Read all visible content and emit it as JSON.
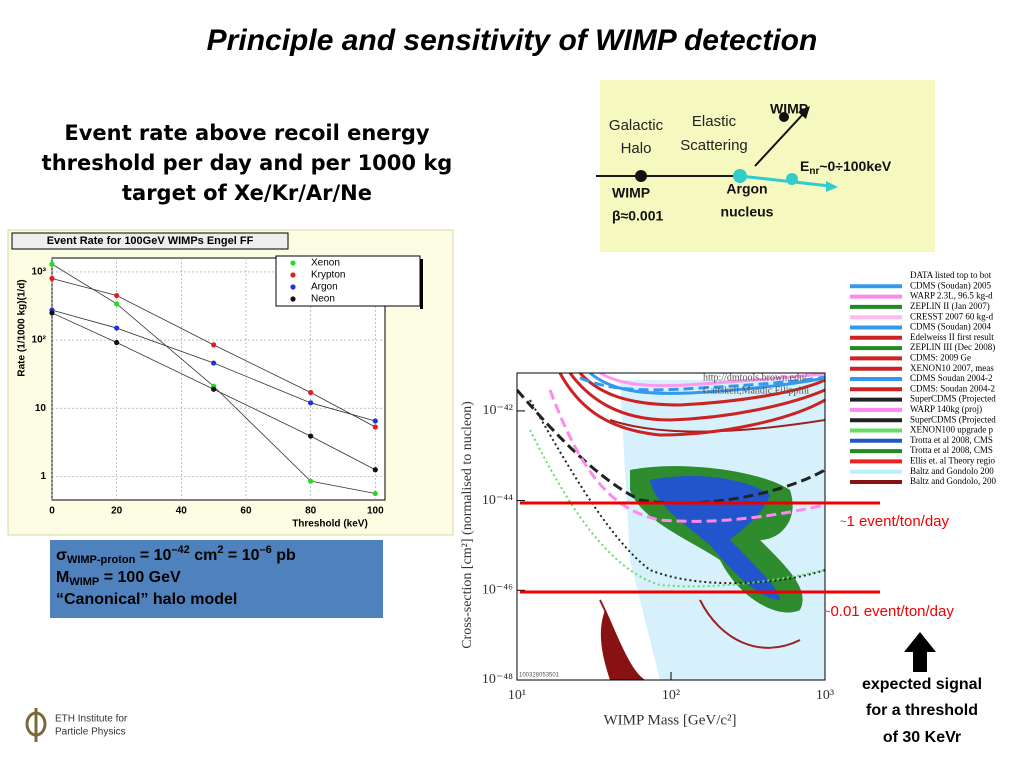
{
  "title": "Principle and sensitivity of WIMP detection",
  "rate_text": [
    "Event rate above recoil energy",
    "threshold per day and per 1000 kg",
    "target of Xe/Kr/Ar/Ne"
  ],
  "diagram": {
    "halo": [
      "Galactic",
      "Halo"
    ],
    "scattering": [
      "Elastic",
      "Scattering"
    ],
    "wimp_out": "WIMP",
    "recoil": [
      "E",
      "nr",
      "~0÷100keV"
    ],
    "nucleus": [
      "Argon",
      "nucleus"
    ],
    "wimp_in": [
      "WIMP",
      "β≈0.001"
    ]
  },
  "chart_data": [
    {
      "type": "line",
      "title": "Event Rate for 100GeV WIMPs Engel FF",
      "xlabel": "Threshold (keV)",
      "ylabel": "Rate (1/1000 kg)(1/d)",
      "x": [
        0,
        20,
        50,
        80,
        100
      ],
      "series": [
        {
          "name": "Xenon",
          "color": "#22dd22",
          "values": [
            1300,
            340,
            21,
            0.85,
            0.56
          ]
        },
        {
          "name": "Krypton",
          "color": "#e02020",
          "values": [
            800,
            450,
            85,
            17,
            5.3
          ]
        },
        {
          "name": "Argon",
          "color": "#2030e0",
          "values": [
            275,
            150,
            46,
            12,
            6.5
          ]
        },
        {
          "name": "Neon",
          "color": "#111111",
          "values": [
            250,
            92,
            19,
            3.9,
            1.25
          ]
        }
      ],
      "xlim": [
        0,
        103
      ],
      "xticks": [
        0,
        20,
        40,
        60,
        80,
        100
      ],
      "ylim": [
        0.45,
        1600
      ],
      "ylog": true,
      "yticks": [
        1,
        10,
        {
          "value": 100,
          "label": "10²"
        },
        {
          "value": 1000,
          "label": "10³"
        }
      ],
      "grid": true,
      "legend": "top-right"
    },
    {
      "type": "exclusion",
      "xlabel": "WIMP Mass [GeV/c²]",
      "ylabel": "Cross-section [cm²] (normalised to nucleon)",
      "credit": [
        "http://dmtools.brown.edu/",
        "Gaitskell,Mandic,Filippini"
      ],
      "stamp": "100328053501",
      "xlim": [
        10,
        1000
      ],
      "xlog": true,
      "xticks": [
        {
          "value": 10,
          "label": "10¹"
        },
        {
          "value": 100,
          "label": "10²"
        },
        {
          "value": 1000,
          "label": "10³"
        }
      ],
      "ylim": [
        1e-48,
        7e-42
      ],
      "ylog": true,
      "yticks": [
        {
          "value": 1e-42,
          "label": "10⁻⁴²"
        },
        {
          "value": 1e-44,
          "label": "10⁻⁴⁴"
        },
        {
          "value": 1e-46,
          "label": "10⁻⁴⁶"
        },
        {
          "value": 1e-48,
          "label": "10⁻⁴⁸"
        }
      ],
      "legend_entries": [
        {
          "name": "DATA listed top to bot",
          "color": "#ffffff"
        },
        {
          "name": "CDMS (Soudan) 2005",
          "color": "#3399ee"
        },
        {
          "name": "WARP 2.3L, 96.5 kg-d",
          "color": "#ff88ee"
        },
        {
          "name": "ZEPLIN II (Jan 2007)",
          "color": "#228822"
        },
        {
          "name": "CRESST 2007 60 kg-d",
          "color": "#ffbbee"
        },
        {
          "name": "CDMS (Soudan) 2004",
          "color": "#3399ee"
        },
        {
          "name": "Edelweiss II first result",
          "color": "#cc2222"
        },
        {
          "name": "ZEPLIN III (Dec 2008)",
          "color": "#228822"
        },
        {
          "name": "CDMS: 2009 Ge",
          "color": "#cc2222"
        },
        {
          "name": "XENON10 2007, meas",
          "color": "#cc2222"
        },
        {
          "name": "CDMS Soudan 2004-2",
          "color": "#3399ee"
        },
        {
          "name": "CDMS: Soudan 2004-2",
          "color": "#cc2222"
        },
        {
          "name": "SuperCDMS (Projected",
          "color": "#222222"
        },
        {
          "name": "WARP 140kg (proj)",
          "color": "#ff88ee"
        },
        {
          "name": "SuperCDMS (Projected",
          "color": "#222222"
        },
        {
          "name": "XENON100 upgrade p",
          "color": "#66dd66"
        },
        {
          "name": "Trotta et al 2008, CMS",
          "color": "#2255cc"
        },
        {
          "name": "Trotta et al 2008, CMS",
          "color": "#228822"
        },
        {
          "name": "Ellis et. al Theory regio",
          "color": "#ee2222"
        },
        {
          "name": "Baltz and Gondolo 200",
          "color": "#bbeeff"
        },
        {
          "name": "Baltz and Gondolo, 200",
          "color": "#881111"
        }
      ]
    }
  ],
  "info_box": {
    "line1": [
      "σ",
      "WIMP-proton",
      " = 10",
      "–42",
      " cm",
      "2",
      " = 10",
      "–6",
      " pb"
    ],
    "line2": [
      "M",
      "WIMP",
      " = 100 GeV"
    ],
    "line3": "“Canonical” halo model"
  },
  "annotations": {
    "one_event": [
      "~",
      "1 event/ton/day"
    ],
    "hundredth_event": [
      "~",
      "0.01 event/ton/day"
    ],
    "signal": [
      "expected signal",
      "for a threshold",
      "of 30 KeVr"
    ]
  },
  "logo": [
    "ETH Institute for",
    "Particle Physics"
  ]
}
